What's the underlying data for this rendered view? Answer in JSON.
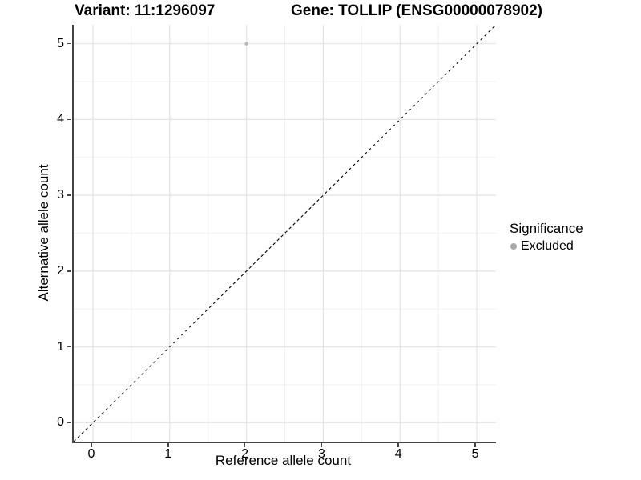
{
  "header": {
    "title_variant": "Variant: 11:1296097",
    "title_gene": "Gene: TOLLIP (ENSG00000078902)"
  },
  "chart_data": {
    "type": "scatter",
    "title": "Variant: 11:1296097   Gene: TOLLIP (ENSG00000078902)",
    "xlabel": "Reference allele count",
    "ylabel": "Alternative allele count",
    "xlim": [
      -0.25,
      5.25
    ],
    "ylim": [
      -0.25,
      5.25
    ],
    "x_ticks": [
      0,
      1,
      2,
      3,
      4,
      5
    ],
    "y_ticks": [
      0,
      1,
      2,
      3,
      4,
      5
    ],
    "minor_ticks_x": [
      0.5,
      1.5,
      2.5,
      3.5,
      4.5
    ],
    "minor_ticks_y": [
      0.5,
      1.5,
      2.5,
      3.5,
      4.5
    ],
    "grid": true,
    "legend_position": "right",
    "points": [
      {
        "x": 2,
        "y": 5,
        "series": "Excluded"
      }
    ],
    "reference_line": {
      "slope": 1,
      "intercept": 0,
      "style": "dashed"
    },
    "colors": {
      "point_excluded": "#b9b9b9",
      "legend_swatch": "#a8a8a8",
      "grid_major": "#e4e4e4",
      "grid_minor": "#f1f1f1",
      "axis_line": "#454545",
      "reference_line": "#000000"
    }
  },
  "legend": {
    "title": "Significance",
    "entries": [
      {
        "label": "Excluded",
        "color": "#a8a8a8"
      }
    ]
  }
}
